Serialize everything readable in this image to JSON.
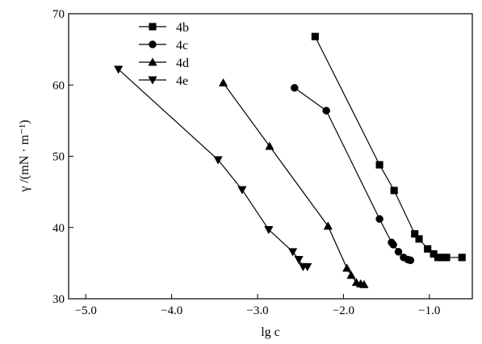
{
  "chart_data": {
    "type": "line",
    "xlabel": "lg c",
    "ylabel": "γ /(mN · m⁻¹)",
    "xlim": [
      -5.2,
      -0.5
    ],
    "ylim": [
      30,
      70
    ],
    "x_ticks": [
      -5.0,
      -4.0,
      -3.0,
      -2.0,
      -1.0
    ],
    "x_tick_labels": [
      "−5.0",
      "−4.0",
      "−3.0",
      "−2.0",
      "−1.0"
    ],
    "y_ticks": [
      30,
      40,
      50,
      60,
      70
    ],
    "y_tick_labels": [
      "30",
      "40",
      "50",
      "60",
      "70"
    ],
    "grid": false,
    "legend_position": "top-left",
    "series": [
      {
        "name": "4b",
        "marker": "square",
        "x": [
          -2.33,
          -1.58,
          -1.41,
          -1.17,
          -1.12,
          -1.02,
          -0.95,
          -0.9,
          -0.85,
          -0.8,
          -0.62
        ],
        "y": [
          66.8,
          48.8,
          45.2,
          39.1,
          38.4,
          37.0,
          36.3,
          35.8,
          35.8,
          35.8,
          35.8
        ]
      },
      {
        "name": "4c",
        "marker": "circle",
        "x": [
          -2.57,
          -2.2,
          -1.58,
          -1.44,
          -1.42,
          -1.36,
          -1.3,
          -1.25,
          -1.22
        ],
        "y": [
          59.6,
          56.4,
          41.2,
          37.9,
          37.6,
          36.6,
          35.8,
          35.5,
          35.4
        ]
      },
      {
        "name": "4d",
        "marker": "triangle-up",
        "x": [
          -3.4,
          -2.86,
          -2.18,
          -1.96,
          -1.91,
          -1.85,
          -1.8,
          -1.76
        ],
        "y": [
          60.3,
          51.4,
          40.2,
          34.3,
          33.3,
          32.3,
          32.1,
          32.0
        ]
      },
      {
        "name": "4e",
        "marker": "triangle-down",
        "x": [
          -4.62,
          -3.46,
          -3.18,
          -2.87,
          -2.59,
          -2.52,
          -2.47,
          -2.42
        ],
        "y": [
          62.2,
          49.5,
          45.3,
          39.7,
          36.6,
          35.5,
          34.5,
          34.5
        ]
      }
    ]
  }
}
